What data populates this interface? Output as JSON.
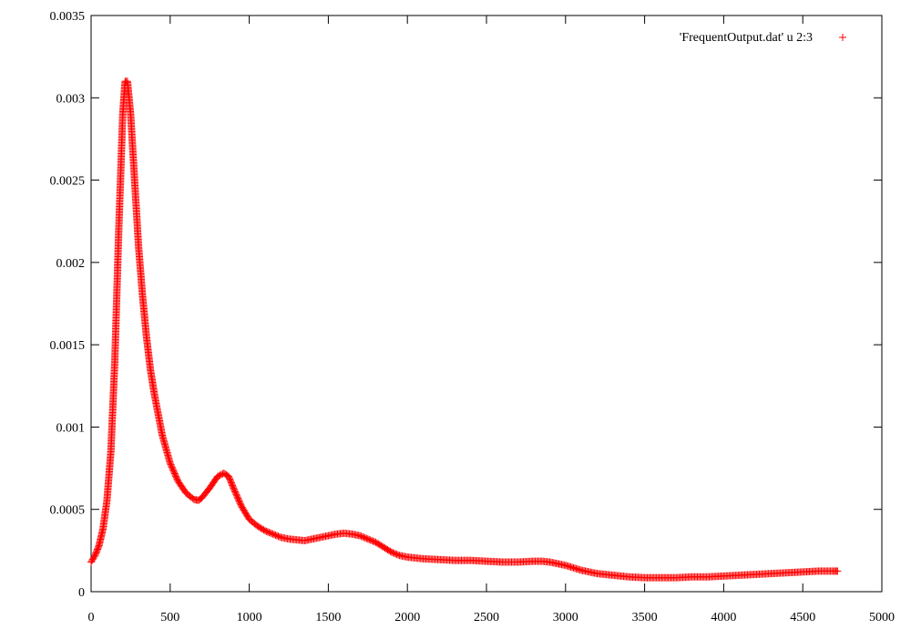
{
  "chart_data": {
    "type": "scatter",
    "xlim": [
      0,
      5000
    ],
    "ylim": [
      0,
      0.0035
    ],
    "x_ticks": [
      "0",
      "500",
      "1000",
      "1500",
      "2000",
      "2500",
      "3000",
      "3500",
      "4000",
      "4500",
      "5000"
    ],
    "y_ticks": [
      "0",
      "0.0005",
      "0.001",
      "0.0015",
      "0.002",
      "0.0025",
      "0.003",
      "0.0035"
    ],
    "x_tick_values": [
      0,
      500,
      1000,
      1500,
      2000,
      2500,
      3000,
      3500,
      4000,
      4500,
      5000
    ],
    "y_tick_values": [
      0,
      0.0005,
      0.001,
      0.0015,
      0.002,
      0.0025,
      0.003,
      0.0035
    ],
    "grid": false,
    "legend_position": "top-right",
    "series": [
      {
        "name": "'FrequentOutput.dat' u 2:3",
        "color": "#ff0000",
        "marker": "plus",
        "x": [
          0,
          25,
          50,
          75,
          100,
          125,
          150,
          175,
          200,
          215,
          230,
          250,
          275,
          300,
          325,
          350,
          375,
          400,
          450,
          500,
          550,
          600,
          650,
          680,
          700,
          750,
          800,
          840,
          870,
          900,
          950,
          1000,
          1050,
          1100,
          1150,
          1200,
          1250,
          1300,
          1350,
          1400,
          1450,
          1500,
          1550,
          1600,
          1650,
          1700,
          1750,
          1800,
          1850,
          1900,
          1950,
          2000,
          2100,
          2200,
          2300,
          2400,
          2500,
          2600,
          2700,
          2800,
          2850,
          2900,
          3000,
          3100,
          3200,
          3300,
          3400,
          3500,
          3600,
          3700,
          3800,
          3900,
          4000,
          4100,
          4200,
          4300,
          4400,
          4500,
          4600,
          4700,
          4720
        ],
        "y": [
          0.00018,
          0.00022,
          0.00028,
          0.00038,
          0.00055,
          0.00085,
          0.0014,
          0.0022,
          0.0029,
          0.0031,
          0.0031,
          0.0029,
          0.0025,
          0.0021,
          0.0018,
          0.00155,
          0.00135,
          0.0012,
          0.00095,
          0.00078,
          0.00067,
          0.0006,
          0.00056,
          0.000555,
          0.00057,
          0.00063,
          0.0007,
          0.00072,
          0.0007,
          0.00063,
          0.00052,
          0.00044,
          0.0004,
          0.00037,
          0.00035,
          0.00033,
          0.00032,
          0.000315,
          0.00031,
          0.00032,
          0.00033,
          0.00034,
          0.00035,
          0.000355,
          0.00035,
          0.00034,
          0.00032,
          0.0003,
          0.00027,
          0.00024,
          0.00022,
          0.00021,
          0.0002,
          0.000195,
          0.00019,
          0.00019,
          0.000185,
          0.00018,
          0.00018,
          0.000185,
          0.000185,
          0.00018,
          0.00016,
          0.00013,
          0.00011,
          0.0001,
          9e-05,
          8.5e-05,
          8.5e-05,
          8.5e-05,
          9e-05,
          9e-05,
          9.5e-05,
          0.0001,
          0.000105,
          0.00011,
          0.000115,
          0.00012,
          0.000125,
          0.000125,
          0.000125
        ]
      }
    ]
  }
}
